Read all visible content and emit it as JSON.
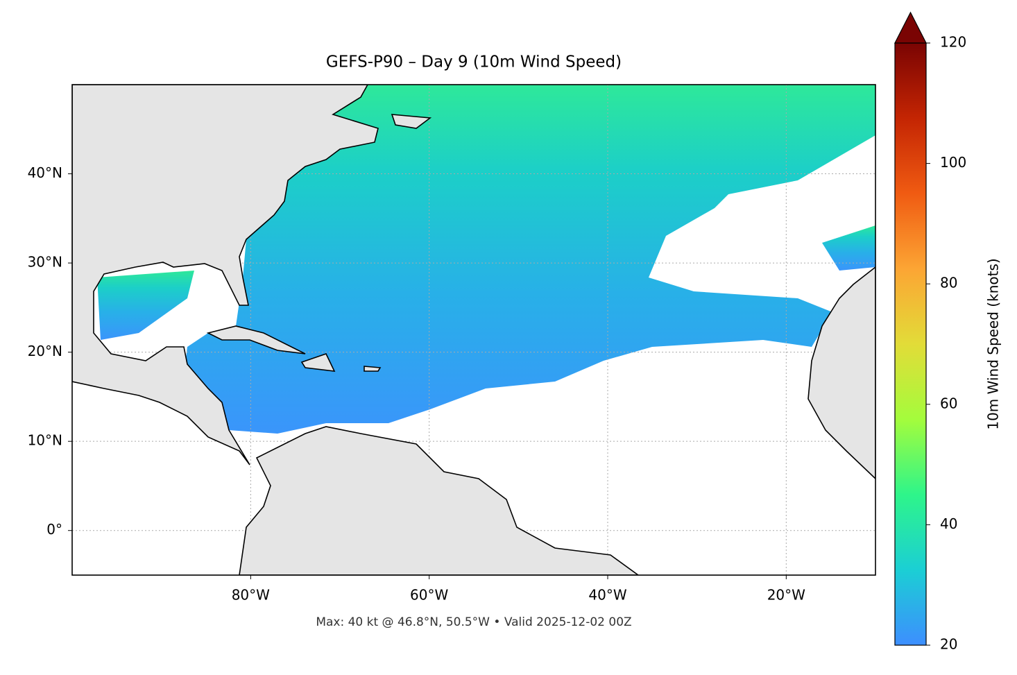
{
  "chart_data": {
    "type": "map",
    "title": "GEFS-P90 – Day 9 (10m Wind Speed)",
    "annotation": "Max: 40 kt @ 46.8°N, 50.5°W • Valid 2025-12-02 00Z",
    "xlim": [
      -100,
      -10
    ],
    "ylim": [
      -5,
      50
    ],
    "xticks": [
      {
        "value": -80,
        "label": "80°W"
      },
      {
        "value": -60,
        "label": "60°W"
      },
      {
        "value": -40,
        "label": "40°W"
      },
      {
        "value": -20,
        "label": "20°W"
      }
    ],
    "yticks": [
      {
        "value": 0,
        "label": "0°"
      },
      {
        "value": 10,
        "label": "10°N"
      },
      {
        "value": 20,
        "label": "20°N"
      },
      {
        "value": 30,
        "label": "30°N"
      },
      {
        "value": 40,
        "label": "40°N"
      }
    ],
    "grid": true,
    "colorbar": {
      "label": "10m Wind Speed (knots)",
      "lim": [
        20,
        120
      ],
      "ticks": [
        20,
        40,
        60,
        80,
        100,
        120
      ],
      "colors": [
        "#3d8eff",
        "#1bcfd4",
        "#2ef58a",
        "#a4fc3c",
        "#e2dc38",
        "#fca534",
        "#f05b12",
        "#c42503",
        "#7a0403"
      ]
    }
  }
}
